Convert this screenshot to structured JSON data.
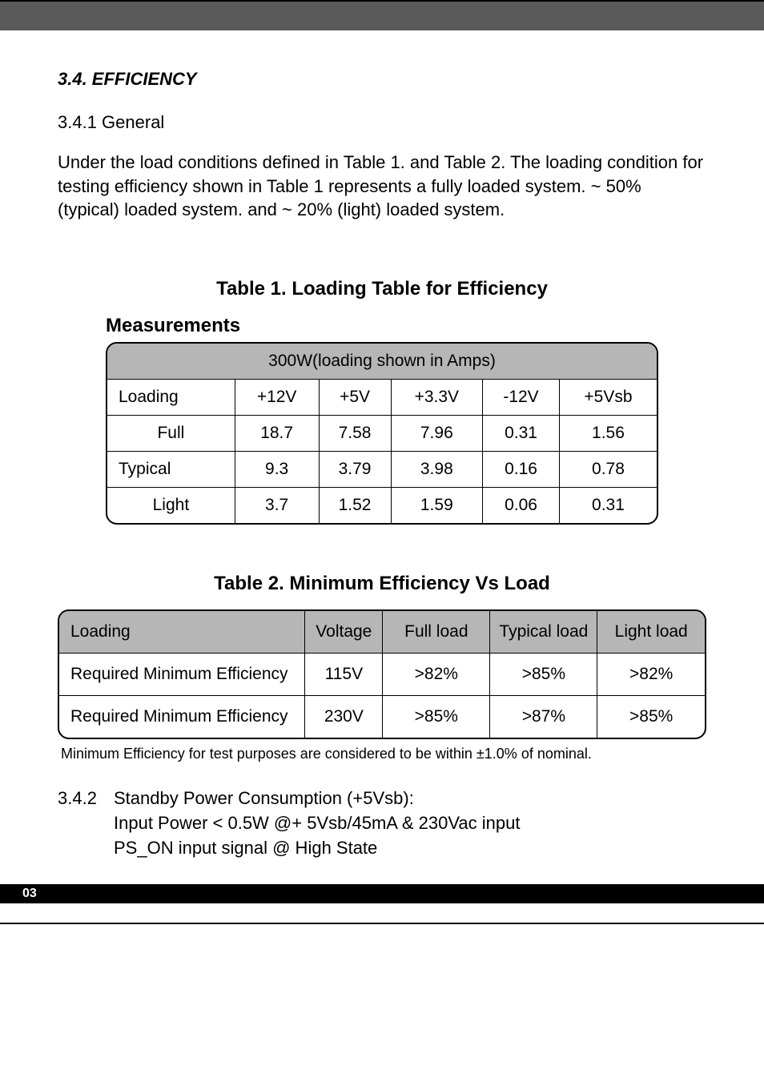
{
  "section": {
    "number_title": "3.4. EFFICIENCY",
    "subsection": "3.4.1 General",
    "paragraph": "Under the load conditions defined in Table 1. and Table 2. The loading condition for testing efficiency shown in Table 1 represents a fully loaded system. ~ 50% (typical) loaded system. and ~ 20% (light) loaded system."
  },
  "table1": {
    "title": "Table 1. Loading Table for Efficiency",
    "measurements_label": "Measurements",
    "header_row": "300W(loading shown in Amps)",
    "columns": [
      "Loading",
      "+12V",
      "+5V",
      "+3.3V",
      "-12V",
      "+5Vsb"
    ],
    "rows": [
      {
        "label": "Full",
        "vals": [
          "18.7",
          "7.58",
          "7.96",
          "0.31",
          "1.56"
        ],
        "label_align": "center"
      },
      {
        "label": "Typical",
        "vals": [
          "9.3",
          "3.79",
          "3.98",
          "0.16",
          "0.78"
        ],
        "label_align": "left"
      },
      {
        "label": "Light",
        "vals": [
          "3.7",
          "1.52",
          "1.59",
          "0.06",
          "0.31"
        ],
        "label_align": "center"
      }
    ],
    "header_background": "#b6b6b6",
    "border_color": "#000000",
    "font_size": 21
  },
  "table2": {
    "title": "Table 2. Minimum Efficiency Vs Load",
    "columns": [
      "Loading",
      "Voltage",
      "Full load",
      "Typical load",
      "Light load"
    ],
    "rows": [
      {
        "label": "Required Minimum Efficiency",
        "vals": [
          "115V",
          ">82%",
          ">85%",
          ">82%"
        ]
      },
      {
        "label": "Required Minimum Efficiency",
        "vals": [
          "230V",
          ">85%",
          ">87%",
          ">85%"
        ]
      }
    ],
    "note": "Minimum Efficiency for test purposes are considered to be within ±1.0% of nominal.",
    "header_background": "#b6b6b6",
    "border_color": "#000000",
    "font_size": 21
  },
  "standby": {
    "num": "3.4.2",
    "line1": "Standby Power Consumption (+5Vsb):",
    "line2": "Input Power < 0.5W @+ 5Vsb/45mA & 230Vac input",
    "line3": "PS_ON input signal @ High State"
  },
  "footer": {
    "page": "03",
    "bar_color": "#000000",
    "text_color": "#ffffff"
  },
  "colors": {
    "header_bar": "#5a5a5a",
    "background": "#ffffff",
    "text": "#000000"
  }
}
